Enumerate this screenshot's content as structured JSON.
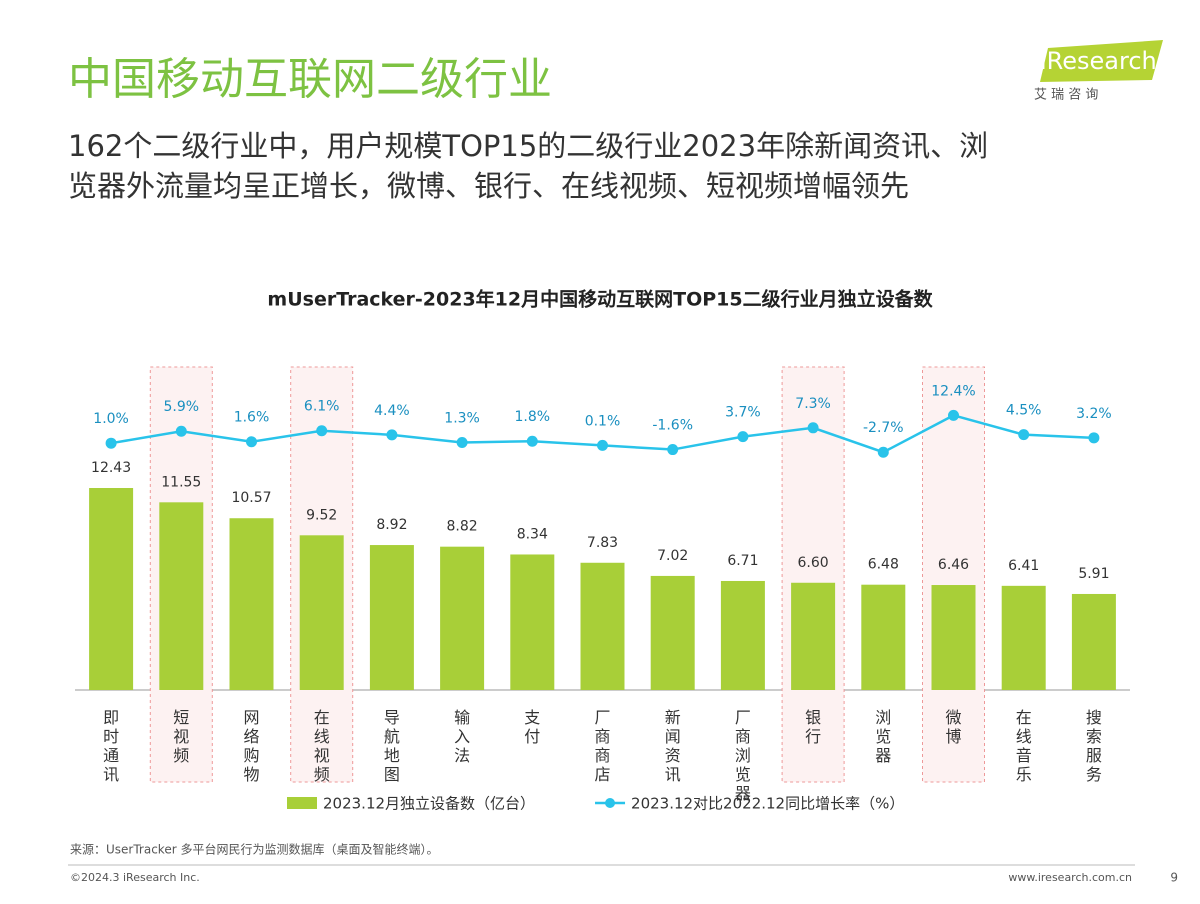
{
  "header": {
    "title": "中国移动互联网二级行业",
    "subtitle_lines": [
      "162个二级行业中，用户规模TOP15的二级行业2023年除新闻资讯、浏",
      "览器外流量均呈正增长，微博、银行、在线视频、短视频增幅领先"
    ],
    "logo": "iResearch",
    "logo_sub": "艾 瑞 咨 询"
  },
  "chart_data": {
    "type": "bar",
    "title": "mUserTracker-2023年12月中国移动互联网TOP15二级行业月独立设备数",
    "categories": [
      "即时通讯",
      "短视频",
      "网络购物",
      "在线视频",
      "导航地图",
      "输入法",
      "支付",
      "厂商商店",
      "新闻资讯",
      "厂商浏览器",
      "银行",
      "浏览器",
      "微博",
      "在线音乐",
      "搜索服务"
    ],
    "series": [
      {
        "name": "2023.12月独立设备数（亿台）",
        "type": "bar",
        "color": "#a8cf38",
        "values": [
          12.43,
          11.55,
          10.57,
          9.52,
          8.92,
          8.82,
          8.34,
          7.83,
          7.02,
          6.71,
          6.6,
          6.48,
          6.46,
          6.41,
          5.91
        ],
        "value_labels": [
          "12.43",
          "11.55",
          "10.57",
          "9.52",
          "8.92",
          "8.82",
          "8.34",
          "7.83",
          "7.02",
          "6.71",
          "6.60",
          "6.48",
          "6.46",
          "6.41",
          "5.91"
        ]
      },
      {
        "name": "2023.12对比2022.12同比增长率（%）",
        "type": "line",
        "axis": "y2",
        "color": "#29c3ea",
        "values": [
          1.0,
          5.9,
          1.6,
          6.1,
          4.4,
          1.3,
          1.8,
          0.1,
          -1.6,
          3.7,
          7.3,
          -2.7,
          12.4,
          4.5,
          3.2
        ],
        "value_labels": [
          "1.0%",
          "5.9%",
          "1.6%",
          "6.1%",
          "4.4%",
          "1.3%",
          "1.8%",
          "0.1%",
          "-1.6%",
          "3.7%",
          "7.3%",
          "-2.7%",
          "12.4%",
          "4.5%",
          "3.2%"
        ]
      }
    ],
    "ylim": [
      0,
      20
    ],
    "y2lim": [
      -100,
      33
    ],
    "highlight": [
      1,
      3,
      10,
      12
    ],
    "legend": "bottom"
  },
  "footer": {
    "source": "来源：UserTracker 多平台网民行为监测数据库（桌面及智能终端）。",
    "copyright": "©2024.3 iResearch Inc.",
    "url": "www.iresearch.com.cn",
    "page": "9"
  }
}
